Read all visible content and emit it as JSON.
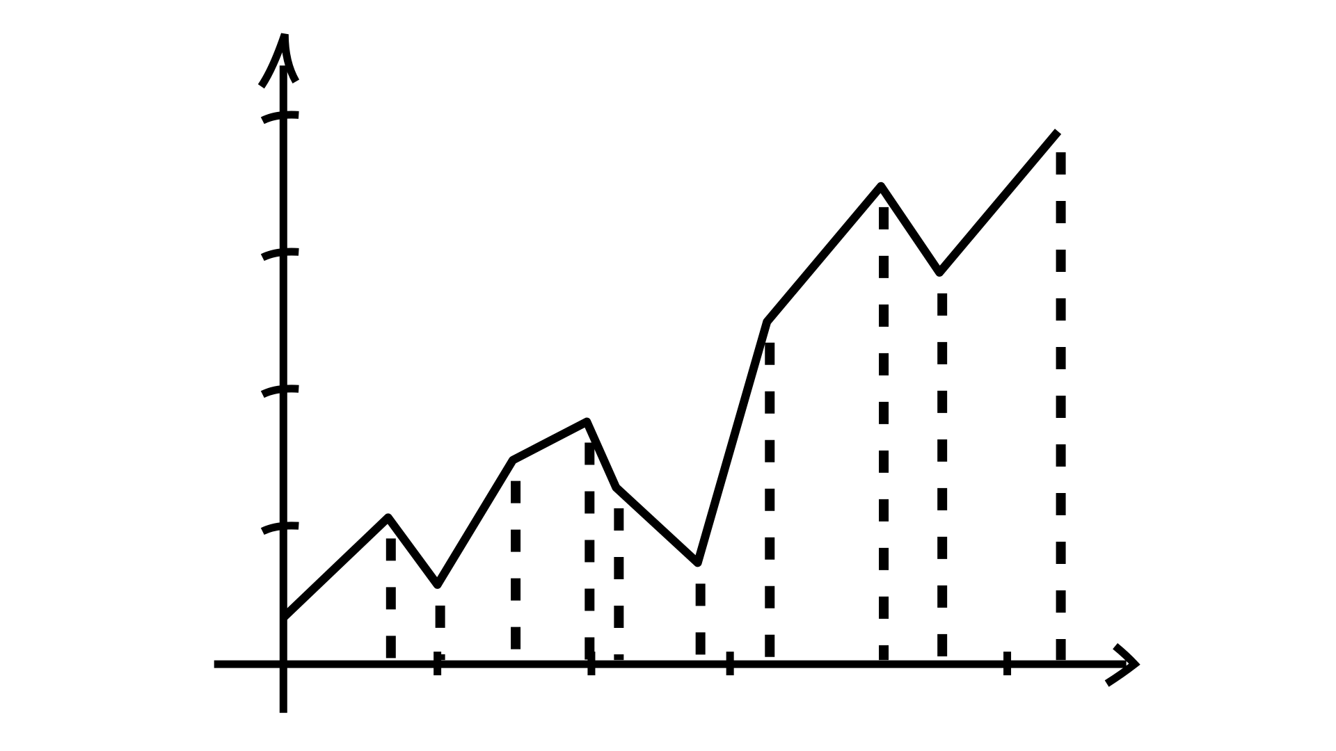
{
  "chart_data": {
    "type": "line",
    "x": [
      0,
      0.68,
      1.0,
      1.49,
      1.97,
      2.16,
      2.69,
      3.14,
      3.88,
      4.26,
      5.03
    ],
    "values": [
      0.34,
      1.07,
      0.58,
      1.49,
      1.77,
      1.29,
      0.74,
      2.5,
      3.49,
      2.86,
      3.89
    ],
    "color": "#000000",
    "xlim": [
      -0.45,
      5.5
    ],
    "ylim": [
      0,
      4.6
    ],
    "xticks": [
      1,
      2,
      2.9,
      4.7
    ],
    "yticks": [
      1,
      2,
      3,
      4
    ],
    "grid": false
  }
}
